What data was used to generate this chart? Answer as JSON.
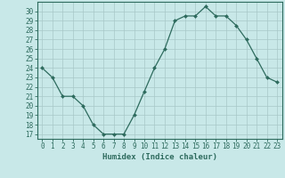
{
  "x": [
    0,
    1,
    2,
    3,
    4,
    5,
    6,
    7,
    8,
    9,
    10,
    11,
    12,
    13,
    14,
    15,
    16,
    17,
    18,
    19,
    20,
    21,
    22,
    23
  ],
  "y": [
    24,
    23,
    21,
    21,
    20,
    18,
    17,
    17,
    17,
    19,
    21.5,
    24,
    26,
    29,
    29.5,
    29.5,
    30.5,
    29.5,
    29.5,
    28.5,
    27,
    25,
    23,
    22.5
  ],
  "line_color": "#2e6b5e",
  "marker_color": "#2e6b5e",
  "bg_color": "#c8e8e8",
  "grid_color": "#a8c8c8",
  "xlabel": "Humidex (Indice chaleur)",
  "xlim": [
    -0.5,
    23.5
  ],
  "ylim": [
    16.5,
    31
  ],
  "yticks": [
    17,
    18,
    19,
    20,
    21,
    22,
    23,
    24,
    25,
    26,
    27,
    28,
    29,
    30
  ],
  "xticks": [
    0,
    1,
    2,
    3,
    4,
    5,
    6,
    7,
    8,
    9,
    10,
    11,
    12,
    13,
    14,
    15,
    16,
    17,
    18,
    19,
    20,
    21,
    22,
    23
  ],
  "label_fontsize": 6.5,
  "tick_fontsize": 5.5
}
